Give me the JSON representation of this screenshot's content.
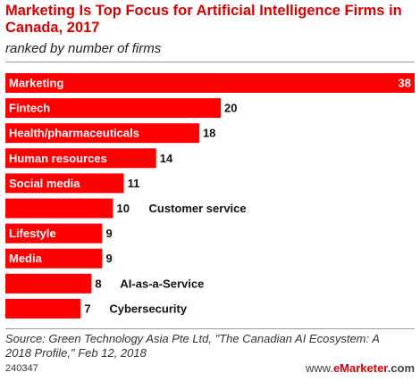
{
  "chart_data": {
    "type": "bar",
    "orientation": "horizontal",
    "title": "Marketing Is Top Focus for Artificial Intelligence Firms in Canada, 2017",
    "subtitle": "ranked by number of firms",
    "categories": [
      "Marketing",
      "Fintech",
      "Health/pharmaceuticals",
      "Human resources",
      "Social media",
      "Customer service",
      "Lifestyle",
      "Media",
      "AI-as-a-Service",
      "Cybersecurity"
    ],
    "values": [
      38,
      20,
      18,
      14,
      11,
      10,
      9,
      9,
      8,
      7
    ],
    "label_position": [
      "inside",
      "inside",
      "inside",
      "inside",
      "inside",
      "outside",
      "inside",
      "inside",
      "outside",
      "outside"
    ],
    "xlim": [
      0,
      38
    ],
    "grid": false,
    "bar_color": "#ff0000"
  },
  "source": "Source: Green Technology Asia Pte Ltd, \"The Canadian AI Ecosystem: A 2018 Profile,\" Feb 12, 2018",
  "chart_id": "240347",
  "brand": {
    "prefix": "www.",
    "e": "e",
    "name": "Marketer",
    "suffix": ".com"
  },
  "colors": {
    "accent": "#d80000",
    "bar": "#ff0000"
  }
}
